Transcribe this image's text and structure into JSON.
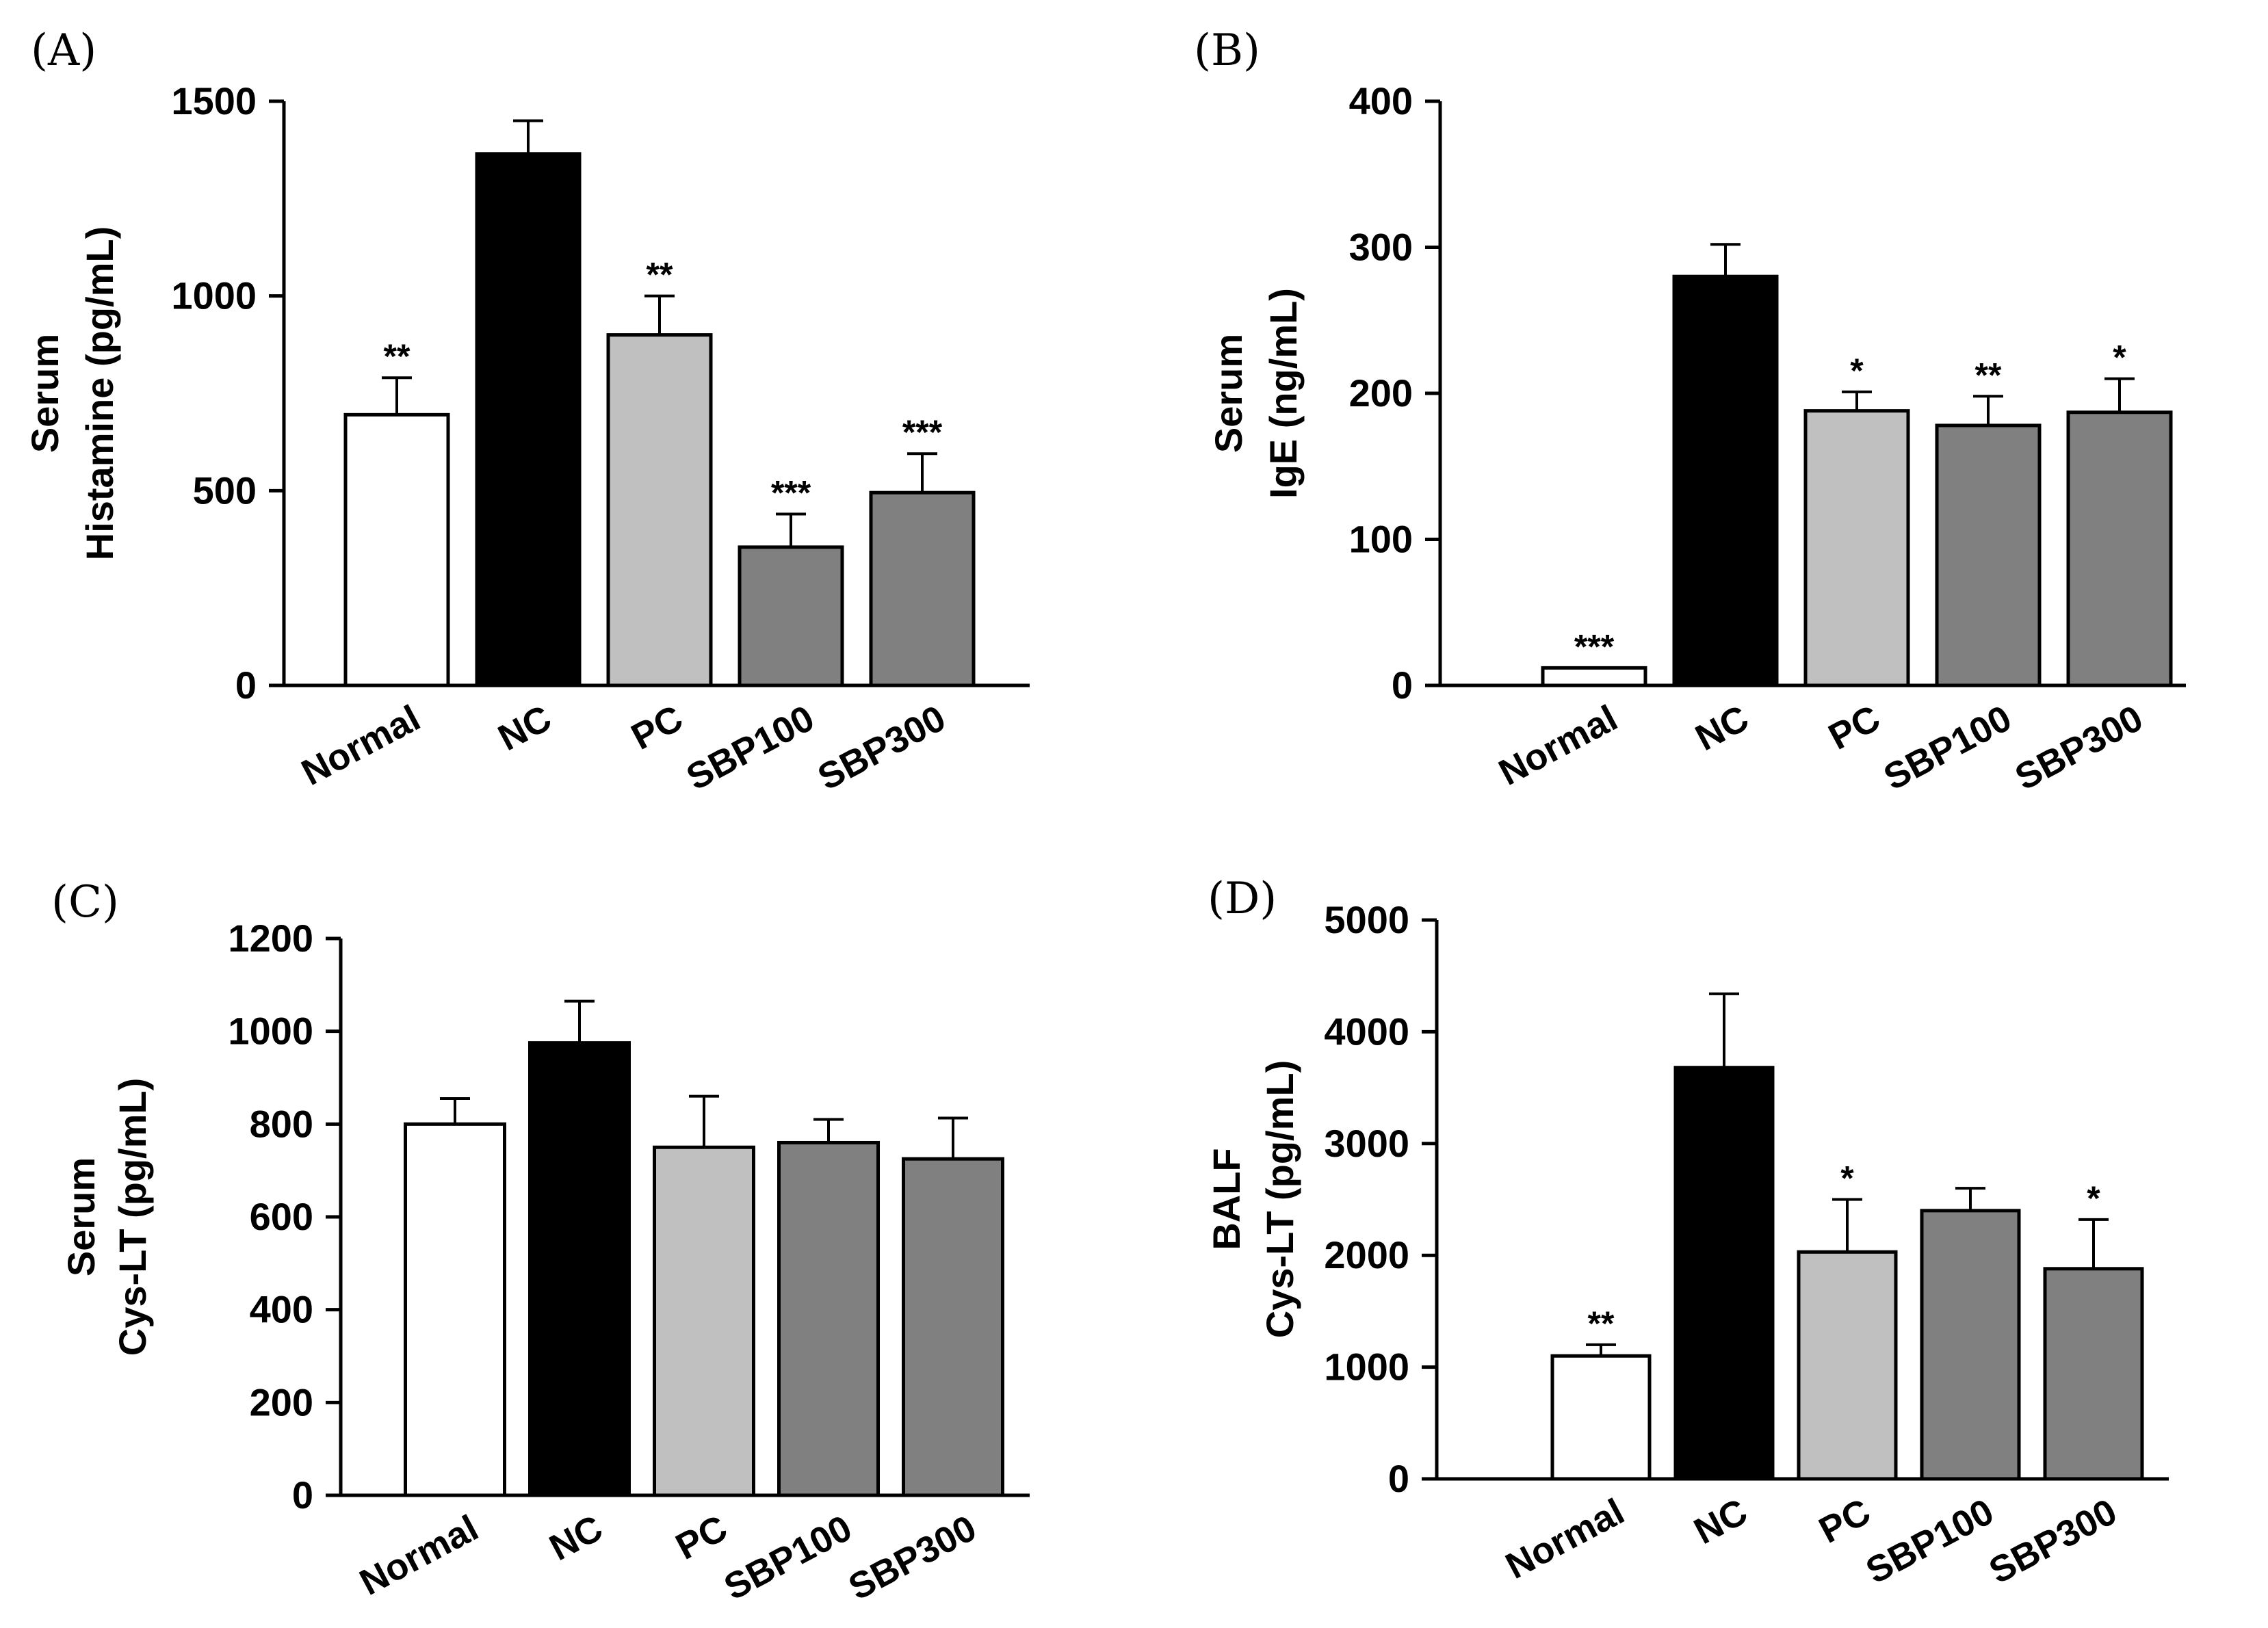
{
  "colors": {
    "Normal": "#ffffff",
    "NC": "#000000",
    "PC": "#c0c0c0",
    "SBP100": "#808080",
    "SBP300": "#808080"
  },
  "chart_data": [
    {
      "panel": "(A)",
      "type": "bar",
      "categories": [
        "Normal",
        "NC",
        "PC",
        "SBP100",
        "SBP300"
      ],
      "values": [
        695,
        1365,
        900,
        355,
        495
      ],
      "errors": [
        95,
        85,
        100,
        85,
        100
      ],
      "significance": [
        "**",
        "",
        "**",
        "***",
        "***"
      ],
      "ylabel_lines": [
        "Serum",
        "Histamine (pg/mL)"
      ],
      "ylim": [
        0,
        1500
      ],
      "yticks": [
        0,
        500,
        1000,
        1500
      ],
      "ytick_labels": [
        "0",
        "500",
        "1000",
        "1500"
      ]
    },
    {
      "panel": "(B)",
      "type": "bar",
      "categories": [
        "Normal",
        "NC",
        "PC",
        "SBP100",
        "SBP300"
      ],
      "values": [
        12,
        280,
        188,
        178,
        187
      ],
      "errors": [
        0,
        22,
        13,
        20,
        23
      ],
      "significance": [
        "***",
        "",
        "*",
        "**",
        "*"
      ],
      "ylabel_lines": [
        "Serum",
        "IgE (ng/mL)"
      ],
      "ylim": [
        0,
        400
      ],
      "yticks": [
        0,
        100,
        200,
        300,
        400
      ],
      "ytick_labels": [
        "0",
        "100",
        "200",
        "300",
        "400"
      ]
    },
    {
      "panel": "(C)",
      "type": "bar",
      "categories": [
        "Normal",
        "NC",
        "PC",
        "SBP100",
        "SBP300"
      ],
      "values": [
        800,
        975,
        750,
        760,
        725
      ],
      "errors": [
        55,
        90,
        110,
        50,
        88
      ],
      "significance": [
        "",
        "",
        "",
        "",
        ""
      ],
      "ylabel_lines": [
        "Serum",
        "Cys-LT (pg/mL)"
      ],
      "ylim": [
        0,
        1200
      ],
      "yticks": [
        0,
        200,
        400,
        600,
        800,
        1000,
        1200
      ],
      "ytick_labels": [
        "0",
        "200",
        "400",
        "600",
        "800",
        "1000",
        "1200"
      ]
    },
    {
      "panel": "(D)",
      "type": "bar",
      "categories": [
        "Normal",
        "NC",
        "PC",
        "SBP100",
        "SBP300"
      ],
      "values": [
        1100,
        3680,
        2030,
        2400,
        1880
      ],
      "errors": [
        100,
        660,
        470,
        200,
        440
      ],
      "significance": [
        "**",
        "",
        "*",
        "",
        "*"
      ],
      "ylabel_lines": [
        "BALF",
        "Cys-LT (pg/mL)"
      ],
      "ylim": [
        0,
        5000
      ],
      "yticks": [
        0,
        1000,
        2000,
        3000,
        4000,
        5000
      ],
      "ytick_labels": [
        "0",
        "1000",
        "2000",
        "3000",
        "4000",
        "5000"
      ]
    }
  ]
}
